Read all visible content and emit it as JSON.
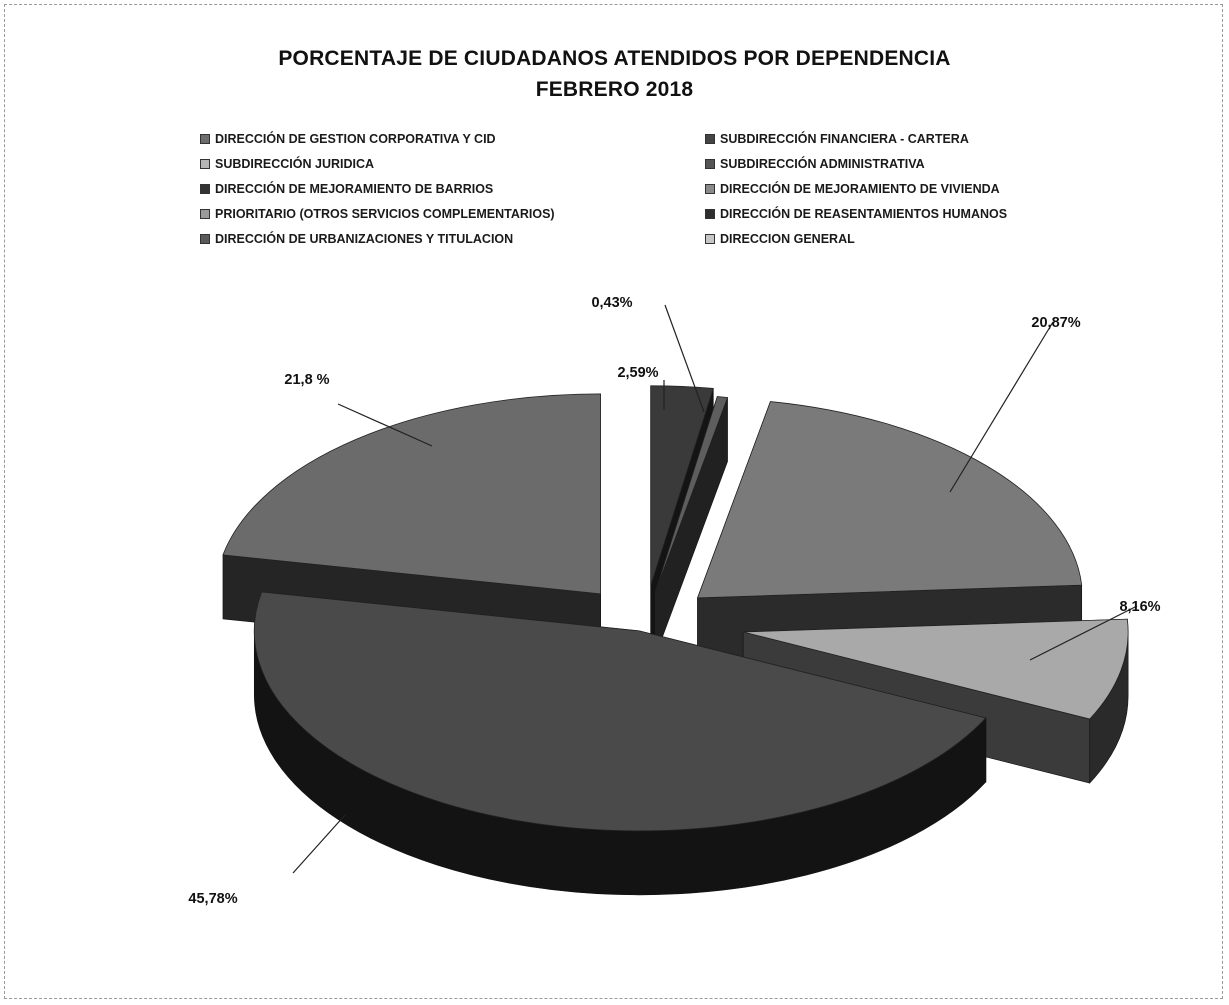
{
  "chart_data": {
    "type": "pie",
    "title": "PORCENTAJE DE CIUDADANOS ATENDIDOS POR DEPENDENCIA",
    "subtitle": "FEBRERO 2018",
    "legend_position": "top",
    "categories": [
      "DIRECCIÓN DE GESTION CORPORATIVA Y CID",
      "SUBDIRECCIÓN FINANCIERA - CARTERA",
      "SUBDIRECCIÓN JURIDICA",
      "SUBDIRECCIÓN ADMINISTRATIVA",
      "DIRECCIÓN DE MEJORAMIENTO DE BARRIOS",
      "DIRECCIÓN DE MEJORAMIENTO DE VIVIENDA",
      "PRIORITARIO (OTROS SERVICIOS COMPLEMENTARIOS)",
      "DIRECCIÓN DE REASENTAMIENTOS HUMANOS",
      "DIRECCIÓN DE URBANIZACIONES Y TITULACION",
      "DIRECCION GENERAL"
    ],
    "slices": [
      {
        "category": "DIRECCIÓN DE URBANIZACIONES Y TITULACION",
        "value": 2.59,
        "label": "2,59%",
        "color": "#3a3a3a"
      },
      {
        "category": "DIRECCION GENERAL",
        "value": 0.43,
        "label": "0,43%",
        "color": "#5e5e5e"
      },
      {
        "category": "DIRECCIÓN DE MEJORAMIENTO DE VIVIENDA",
        "value": 20.87,
        "label": "20,87%",
        "color": "#7a7a7a"
      },
      {
        "category": "PRIORITARIO (OTROS SERVICIOS COMPLEMENTARIOS)",
        "value": 8.16,
        "label": "8,16%",
        "color": "#a9a9a9"
      },
      {
        "category": "DIRECCIÓN DE REASENTAMIENTOS HUMANOS",
        "value": 45.78,
        "label": "45,78%",
        "color": "#4a4a4a"
      },
      {
        "category": "DIRECCIÓN DE MEJORAMIENTO DE BARRIOS",
        "value": 21.8,
        "label": "21,8 %",
        "color": "#6b6b6b"
      }
    ],
    "legend_colors": [
      "#6d6d6d",
      "#444444",
      "#b5b5b5",
      "#555555",
      "#333333",
      "#8a8a8a",
      "#9a9a9a",
      "#2e2e2e",
      "#5a5a5a",
      "#c6c6c6"
    ],
    "grid": false
  }
}
